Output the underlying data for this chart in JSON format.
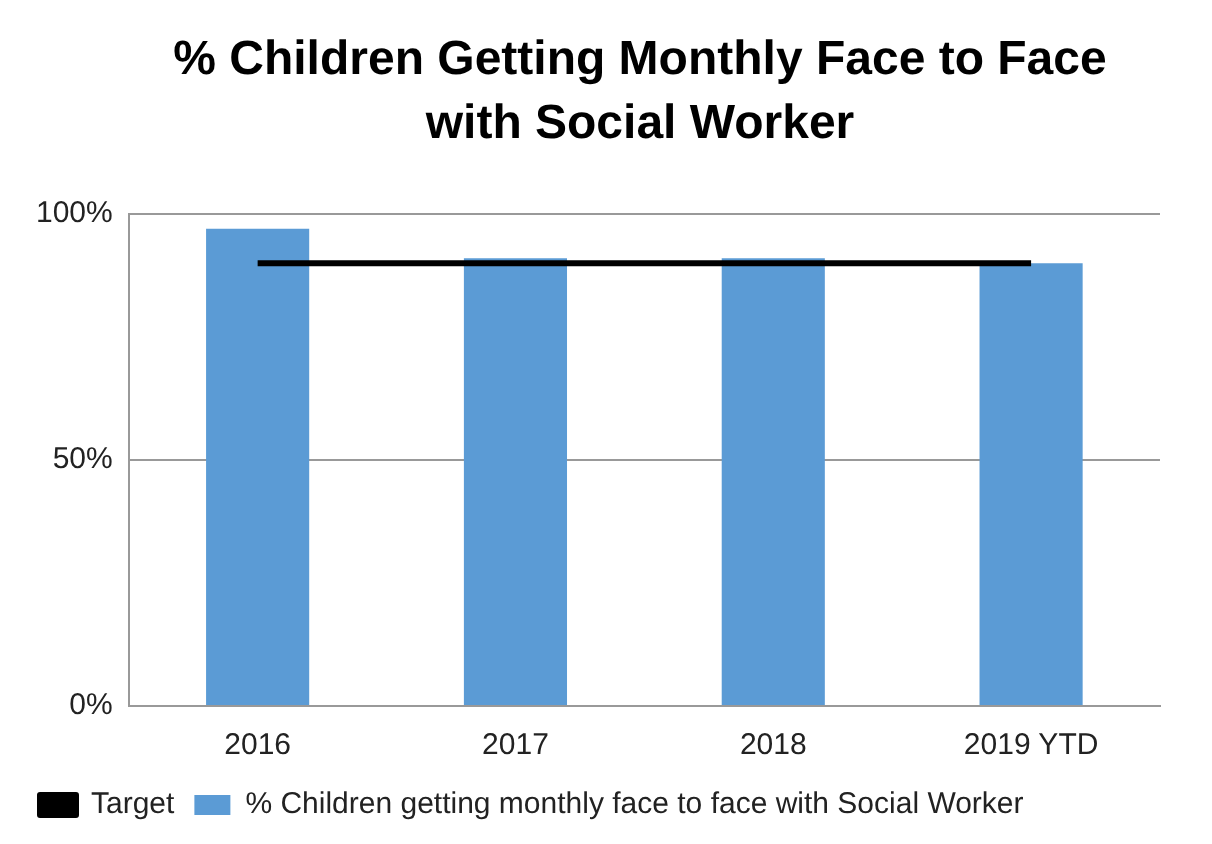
{
  "chart_data": {
    "type": "bar",
    "title": "% Children Getting Monthly Face to Face with Social Worker",
    "categories": [
      "2016",
      "2017",
      "2018",
      "2019 YTD"
    ],
    "series": [
      {
        "name": "% Children getting monthly face to face with Social Worker",
        "color": "#5b9bd5",
        "values": [
          97,
          91,
          91,
          90
        ]
      },
      {
        "name": "Target",
        "type": "line",
        "color": "#000000",
        "values": [
          90,
          90,
          90,
          90
        ]
      }
    ],
    "ylim": [
      0,
      100
    ],
    "yticks": [
      {
        "value": 0,
        "label": "0%"
      },
      {
        "value": 50,
        "label": "50%"
      },
      {
        "value": 100,
        "label": "100%"
      }
    ],
    "grid": "y",
    "legend": "bottom",
    "marker": "none"
  }
}
